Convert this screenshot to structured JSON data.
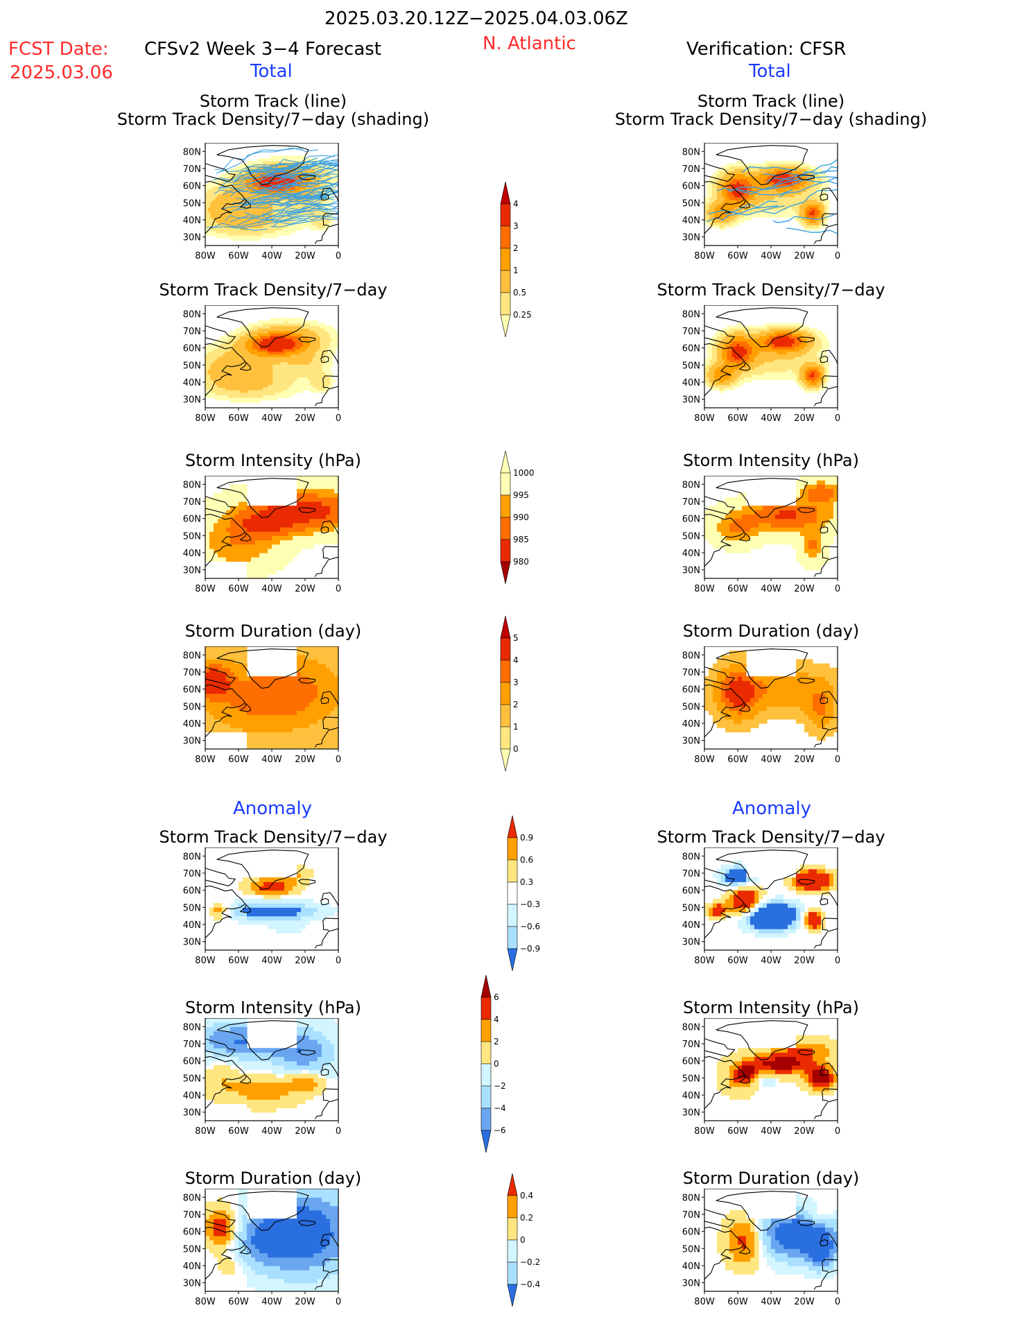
{
  "header": {
    "date_range": "2025.03.20.12Z−2025.04.03.06Z",
    "fcst_label": "FCST Date:",
    "fcst_date": "2025.03.06",
    "model": "CFSv2 Week 3−4 Forecast",
    "region": "N. Atlantic",
    "verification": "Verification: CFSR"
  },
  "sections": {
    "total": "Total",
    "anomaly": "Anomaly"
  },
  "panel_titles": {
    "track_line": "Storm Track (line)",
    "track_shading": "Storm Track Density/7−day (shading)",
    "density": "Storm Track Density/7−day",
    "intensity": "Storm Intensity (hPa)",
    "duration": "Storm Duration (day)"
  },
  "axes": {
    "lat_ticks": [
      "80N",
      "70N",
      "60N",
      "50N",
      "40N",
      "30N"
    ],
    "lon_ticks": [
      "80W",
      "60W",
      "40W",
      "20W",
      "0"
    ]
  },
  "colors": {
    "c0": "#ffffb4",
    "c1": "#ffe680",
    "c2": "#ffc13d",
    "c3": "#ffa000",
    "c4": "#ff6e00",
    "c5": "#ea2a00",
    "c6": "#c00000",
    "c7": "#a50000",
    "n1": "#d2f5ff",
    "n2": "#a9e0ff",
    "n3": "#6aa6f0",
    "n4": "#2a6fe0",
    "n5": "#1446c0",
    "track": "#3aa0e0",
    "land": "#ffffff"
  },
  "chart_data": [
    {
      "type": "heatmap",
      "name": "density_total",
      "levels": [
        0.25,
        0.5,
        1,
        2,
        3,
        4
      ],
      "colorbar_labels": [
        "4",
        "3",
        "2",
        "1",
        "0.5",
        "0.25"
      ]
    },
    {
      "type": "heatmap",
      "name": "intensity_total",
      "levels": [
        980,
        985,
        990,
        995,
        1000
      ],
      "colorbar_labels": [
        "1000",
        "995",
        "990",
        "985",
        "980"
      ]
    },
    {
      "type": "heatmap",
      "name": "duration_total",
      "levels": [
        0,
        1,
        2,
        3,
        4,
        5
      ],
      "colorbar_labels": [
        "5",
        "4",
        "3",
        "2",
        "1",
        "0"
      ]
    },
    {
      "type": "heatmap",
      "name": "density_anomaly",
      "levels": [
        -0.9,
        -0.6,
        -0.3,
        0.3,
        0.6,
        0.9
      ],
      "colorbar_labels": [
        "0.9",
        "0.6",
        "0.3",
        "−0.3",
        "−0.6",
        "−0.9"
      ]
    },
    {
      "type": "heatmap",
      "name": "intensity_anomaly",
      "levels": [
        -6,
        -4,
        -2,
        0,
        2,
        4,
        6
      ],
      "colorbar_labels": [
        "6",
        "4",
        "2",
        "0",
        "−2",
        "−4",
        "−6"
      ]
    },
    {
      "type": "heatmap",
      "name": "duration_anomaly",
      "levels": [
        -0.4,
        -0.2,
        0,
        0.2,
        0.4
      ],
      "colorbar_labels": [
        "0.4",
        "0.2",
        "0",
        "−0.2",
        "−0.4"
      ]
    }
  ]
}
